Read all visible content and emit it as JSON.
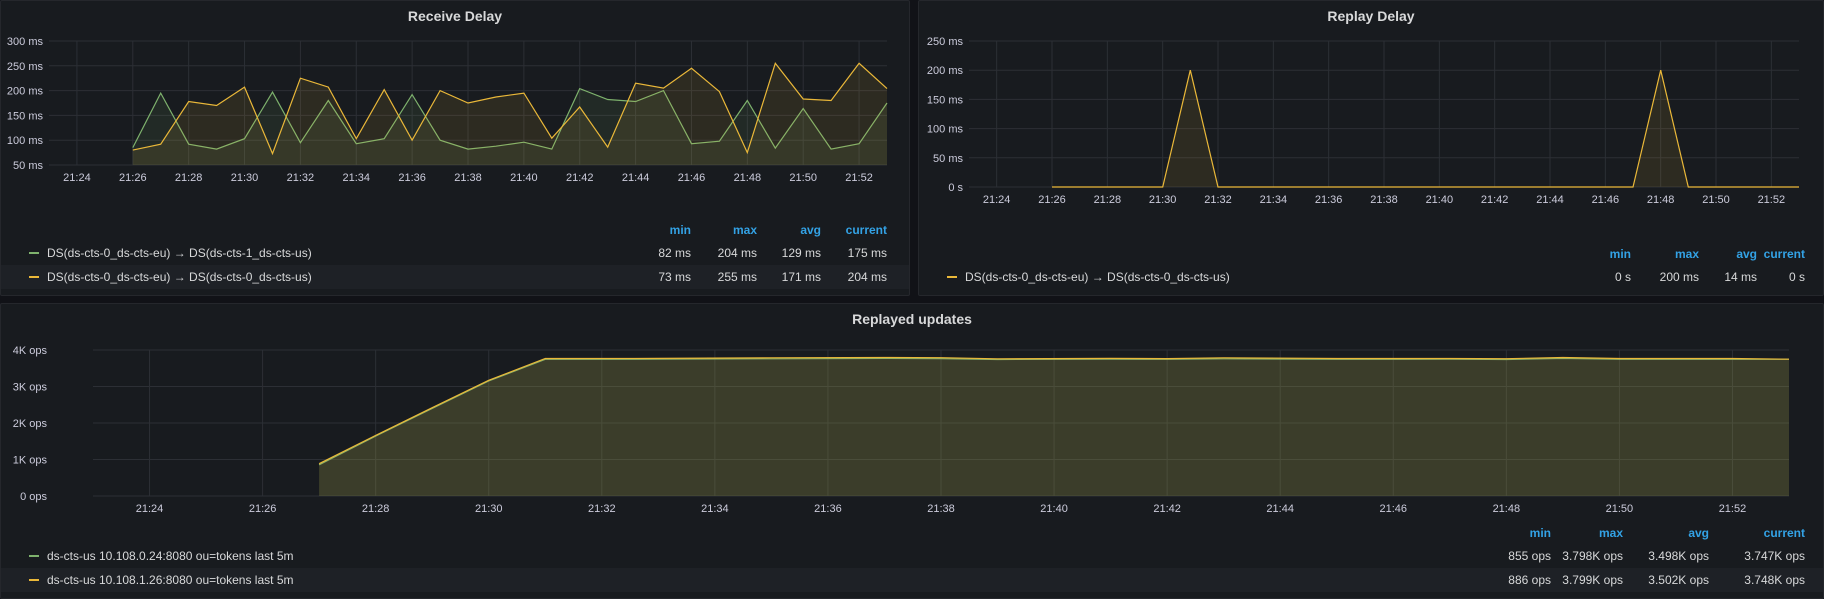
{
  "chart_data": [
    {
      "id": "receive-delay",
      "type": "line",
      "title": "Receive Delay",
      "unit": "ms",
      "ylim": [
        50,
        300
      ],
      "yticks": [
        50,
        100,
        150,
        200,
        250,
        300
      ],
      "ytick_labels": [
        "50 ms",
        "100 ms",
        "150 ms",
        "200 ms",
        "250 ms",
        "300 ms"
      ],
      "xlim": [
        "21:23",
        "21:53"
      ],
      "xticks": [
        "21:24",
        "21:26",
        "21:28",
        "21:30",
        "21:32",
        "21:34",
        "21:36",
        "21:38",
        "21:40",
        "21:42",
        "21:44",
        "21:46",
        "21:48",
        "21:50",
        "21:52"
      ],
      "grid": true,
      "legend_columns": [
        "min",
        "max",
        "avg",
        "current"
      ],
      "series": [
        {
          "name": "DS(ds-cts-0_ds-cts-eu) → DS(ds-cts-1_ds-cts-us)",
          "color": "#7eb26d",
          "x": [
            "21:26",
            "21:27",
            "21:28",
            "21:29",
            "21:30",
            "21:31",
            "21:32",
            "21:33",
            "21:34",
            "21:35",
            "21:36",
            "21:37",
            "21:38",
            "21:39",
            "21:40",
            "21:41",
            "21:42",
            "21:43",
            "21:44",
            "21:45",
            "21:46",
            "21:47",
            "21:48",
            "21:49",
            "21:50",
            "21:51",
            "21:52",
            "21:53"
          ],
          "values": [
            85,
            195,
            92,
            82,
            103,
            197,
            95,
            180,
            93,
            103,
            192,
            100,
            82,
            88,
            96,
            82,
            204,
            182,
            178,
            200,
            93,
            98,
            180,
            84,
            164,
            82,
            93,
            175
          ],
          "stats": [
            "82 ms",
            "204 ms",
            "129 ms",
            "175 ms"
          ]
        },
        {
          "name": "DS(ds-cts-0_ds-cts-eu) → DS(ds-cts-0_ds-cts-us)",
          "color": "#eab839",
          "x": [
            "21:26",
            "21:27",
            "21:28",
            "21:29",
            "21:30",
            "21:31",
            "21:32",
            "21:33",
            "21:34",
            "21:35",
            "21:36",
            "21:37",
            "21:38",
            "21:39",
            "21:40",
            "21:41",
            "21:42",
            "21:43",
            "21:44",
            "21:45",
            "21:46",
            "21:47",
            "21:48",
            "21:49",
            "21:50",
            "21:51",
            "21:52",
            "21:53"
          ],
          "values": [
            80,
            92,
            178,
            170,
            207,
            73,
            225,
            207,
            103,
            202,
            100,
            200,
            175,
            187,
            195,
            104,
            167,
            86,
            215,
            205,
            245,
            198,
            75,
            255,
            183,
            180,
            255,
            204
          ],
          "stats": [
            "73 ms",
            "255 ms",
            "171 ms",
            "204 ms"
          ]
        }
      ]
    },
    {
      "id": "replay-delay",
      "type": "line",
      "title": "Replay Delay",
      "unit": "ms",
      "ylim": [
        0,
        250
      ],
      "yticks": [
        0,
        50,
        100,
        150,
        200,
        250
      ],
      "ytick_labels": [
        "0 s",
        "50 ms",
        "100 ms",
        "150 ms",
        "200 ms",
        "250 ms"
      ],
      "xlim": [
        "21:23",
        "21:53"
      ],
      "xticks": [
        "21:24",
        "21:26",
        "21:28",
        "21:30",
        "21:32",
        "21:34",
        "21:36",
        "21:38",
        "21:40",
        "21:42",
        "21:44",
        "21:46",
        "21:48",
        "21:50",
        "21:52"
      ],
      "grid": true,
      "legend_columns": [
        "min",
        "max",
        "avg",
        "current"
      ],
      "series": [
        {
          "name": "DS(ds-cts-0_ds-cts-eu) → DS(ds-cts-0_ds-cts-us)",
          "color": "#eab839",
          "x": [
            "21:26",
            "21:30",
            "21:31",
            "21:32",
            "21:47",
            "21:48",
            "21:49",
            "21:53"
          ],
          "values": [
            0,
            0,
            200,
            0,
            0,
            200,
            0,
            0
          ],
          "stats": [
            "0 s",
            "200 ms",
            "14 ms",
            "0 s"
          ]
        }
      ]
    },
    {
      "id": "replayed-updates",
      "type": "area",
      "title": "Replayed updates",
      "unit": "ops",
      "ylim": [
        0,
        4000
      ],
      "yticks": [
        0,
        1000,
        2000,
        3000,
        4000
      ],
      "ytick_labels": [
        "0 ops",
        "1K ops",
        "2K ops",
        "3K ops",
        "4K ops"
      ],
      "xlim": [
        "21:23",
        "21:53"
      ],
      "xticks": [
        "21:24",
        "21:26",
        "21:28",
        "21:30",
        "21:32",
        "21:34",
        "21:36",
        "21:38",
        "21:40",
        "21:42",
        "21:44",
        "21:46",
        "21:48",
        "21:50",
        "21:52"
      ],
      "grid": true,
      "legend_columns": [
        "min",
        "max",
        "avg",
        "current"
      ],
      "series": [
        {
          "name": "ds-cts-us 10.108.0.24:8080 ou=tokens last 5m",
          "color": "#7eb26d",
          "x": [
            "21:27",
            "21:28",
            "21:29",
            "21:30",
            "21:31",
            "21:33",
            "21:35",
            "21:37",
            "21:38",
            "21:39",
            "21:41",
            "21:42",
            "21:43",
            "21:45",
            "21:47",
            "21:48",
            "21:49",
            "21:50",
            "21:52",
            "21:53"
          ],
          "values": [
            855,
            1640,
            2400,
            3150,
            3745,
            3748,
            3760,
            3770,
            3765,
            3740,
            3748,
            3745,
            3760,
            3745,
            3747,
            3740,
            3770,
            3745,
            3745,
            3747
          ],
          "stats": [
            "855 ops",
            "3.798K ops",
            "3.498K ops",
            "3.747K ops"
          ]
        },
        {
          "name": "ds-cts-us 10.108.1.26:8080 ou=tokens last 5m",
          "color": "#eab839",
          "x": [
            "21:27",
            "21:28",
            "21:29",
            "21:30",
            "21:31",
            "21:33",
            "21:35",
            "21:37",
            "21:38",
            "21:39",
            "21:41",
            "21:42",
            "21:43",
            "21:45",
            "21:47",
            "21:48",
            "21:49",
            "21:50",
            "21:52",
            "21:53"
          ],
          "values": [
            886,
            1660,
            2420,
            3170,
            3768,
            3770,
            3785,
            3795,
            3790,
            3760,
            3770,
            3765,
            3785,
            3768,
            3768,
            3762,
            3795,
            3768,
            3768,
            3748
          ],
          "stats": [
            "886 ops",
            "3.799K ops",
            "3.502K ops",
            "3.748K ops"
          ]
        }
      ]
    }
  ]
}
